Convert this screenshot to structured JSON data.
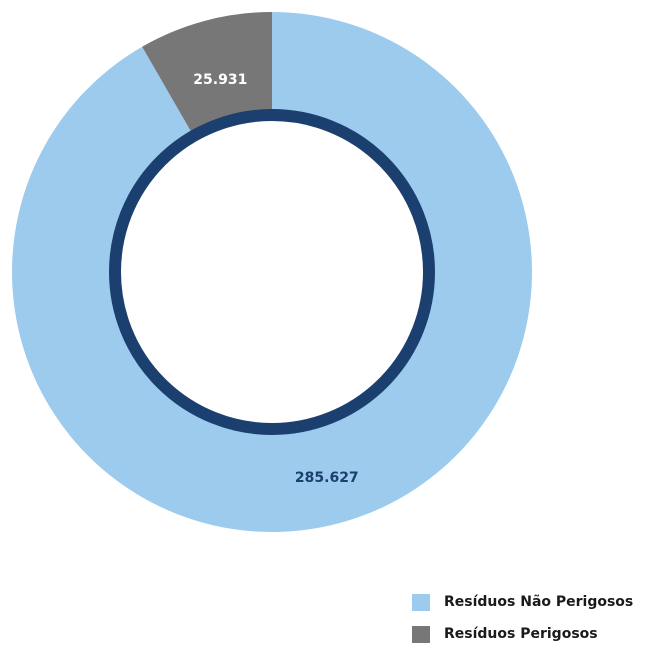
{
  "chart_data": {
    "type": "pie",
    "title": "",
    "series": [
      {
        "name": "Resíduos Não Perigosos",
        "value": 285627,
        "label": "285.627",
        "color": "#9dcbed",
        "label_color": "#1b3f6e"
      },
      {
        "name": "Resíduos Perigosos",
        "value": 25931,
        "label": "25.931",
        "color": "#777777",
        "label_color": "#ffffff"
      }
    ],
    "legend_position": "bottom-right",
    "inner_ring_color": "#1b3f6e"
  }
}
